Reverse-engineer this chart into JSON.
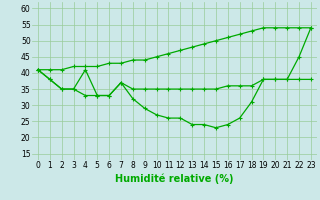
{
  "xlabel": "Humidité relative (%)",
  "x": [
    0,
    1,
    2,
    3,
    4,
    5,
    6,
    7,
    8,
    9,
    10,
    11,
    12,
    13,
    14,
    15,
    16,
    17,
    18,
    19,
    20,
    21,
    22,
    23
  ],
  "line1": [
    41,
    38,
    35,
    35,
    41,
    33,
    33,
    37,
    32,
    29,
    27,
    26,
    26,
    24,
    24,
    23,
    24,
    26,
    31,
    38,
    38,
    38,
    45,
    54
  ],
  "line2": [
    41,
    38,
    35,
    35,
    33,
    33,
    33,
    37,
    35,
    35,
    35,
    35,
    35,
    35,
    35,
    35,
    36,
    36,
    36,
    38,
    38,
    38,
    38,
    38
  ],
  "line3": [
    41,
    41,
    41,
    42,
    42,
    42,
    43,
    43,
    44,
    44,
    45,
    46,
    47,
    48,
    49,
    50,
    51,
    52,
    53,
    54,
    54,
    54,
    54,
    54
  ],
  "bg_color": "#cce8e8",
  "grid_color": "#99cc99",
  "line_color": "#00aa00",
  "ylim": [
    13,
    62
  ],
  "yticks": [
    15,
    20,
    25,
    30,
    35,
    40,
    45,
    50,
    55,
    60
  ],
  "xtick_labels": [
    "0",
    "1",
    "2",
    "3",
    "4",
    "5",
    "6",
    "7",
    "8",
    "9",
    "10",
    "11",
    "12",
    "13",
    "14",
    "15",
    "16",
    "17",
    "18",
    "19",
    "20",
    "21",
    "22",
    "23"
  ],
  "marker": "+",
  "markersize": 3.5,
  "linewidth": 0.9,
  "xlabel_fontsize": 7,
  "tick_fontsize": 5.5
}
